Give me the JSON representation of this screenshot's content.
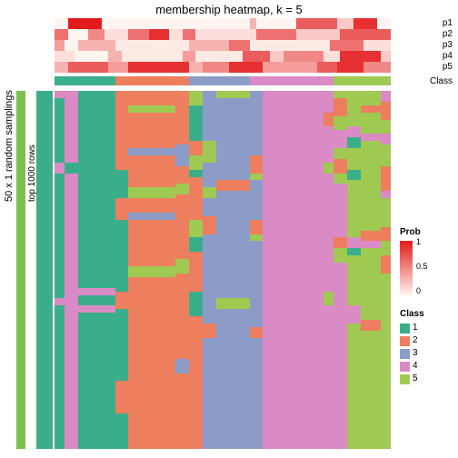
{
  "title": "membership heatmap, k = 5",
  "p_labels": [
    "p1",
    "p2",
    "p3",
    "p4",
    "p5"
  ],
  "class_row_label": "Class",
  "y_outer_label": "50 x 1 random samplings",
  "y_inner_label": "top 1000 rows",
  "colors": {
    "class": {
      "1": "#3aae8a",
      "2": "#ed7e5e",
      "3": "#8b9cc9",
      "4": "#da8ac4",
      "5": "#9fca52"
    },
    "prob_min": "#fff5f0",
    "prob_max": "#e31a1c",
    "white": "#ffffff",
    "left_green": "#7cbf4e",
    "left_teal": "#3aae8a",
    "title_text": "#000000"
  },
  "class_segments": [
    {
      "c": "1",
      "w": 0.18
    },
    {
      "c": "2",
      "w": 0.22
    },
    {
      "c": "3",
      "w": 0.18
    },
    {
      "c": "4",
      "w": 0.25
    },
    {
      "c": "5",
      "w": 0.17
    }
  ],
  "annotation_rows": [
    [
      [
        0.04,
        0
      ],
      [
        0.1,
        1
      ],
      [
        0.04,
        0
      ],
      [
        0.4,
        0
      ],
      [
        0.02,
        0.3
      ],
      [
        0.12,
        0
      ],
      [
        0.12,
        0.7
      ],
      [
        0.05,
        0.2
      ],
      [
        0.07,
        0.9
      ],
      [
        0.04,
        0
      ]
    ],
    [
      [
        0.04,
        0.6
      ],
      [
        0.06,
        0
      ],
      [
        0.05,
        0.5
      ],
      [
        0.07,
        0.1
      ],
      [
        0.06,
        0.6
      ],
      [
        0.06,
        0.9
      ],
      [
        0.04,
        0.1
      ],
      [
        0.04,
        0.6
      ],
      [
        0.18,
        0.1
      ],
      [
        0.12,
        0.6
      ],
      [
        0.13,
        0.2
      ],
      [
        0.15,
        0.7
      ]
    ],
    [
      [
        0.03,
        0.4
      ],
      [
        0.04,
        0
      ],
      [
        0.11,
        0.3
      ],
      [
        0.22,
        0.05
      ],
      [
        0.12,
        0.3
      ],
      [
        0.06,
        0.6
      ],
      [
        0.24,
        0.05
      ],
      [
        0.1,
        0.6
      ],
      [
        0.08,
        0.1
      ]
    ],
    [
      [
        0.06,
        0.1
      ],
      [
        0.1,
        0
      ],
      [
        0.04,
        0.3
      ],
      [
        0.18,
        0.05
      ],
      [
        0.04,
        0.4
      ],
      [
        0.14,
        0.05
      ],
      [
        0.08,
        0.7
      ],
      [
        0.04,
        0.2
      ],
      [
        0.12,
        0.5
      ],
      [
        0.05,
        0.1
      ],
      [
        0.12,
        0.9
      ],
      [
        0.03,
        0.2
      ]
    ],
    [
      [
        0.04,
        0.3
      ],
      [
        0.12,
        0.7
      ],
      [
        0.06,
        0.4
      ],
      [
        0.18,
        0.9
      ],
      [
        0.04,
        0.3
      ],
      [
        0.08,
        0.5
      ],
      [
        0.1,
        0.9
      ],
      [
        0.16,
        0.4
      ],
      [
        0.06,
        0.7
      ],
      [
        0.08,
        0.9
      ],
      [
        0.08,
        0.5
      ]
    ]
  ],
  "main_columns": [
    {
      "w": 0.03,
      "blocks": [
        [
          0.02,
          "4"
        ],
        [
          0.18,
          "1"
        ],
        [
          0.03,
          "4"
        ],
        [
          0.35,
          "1"
        ],
        [
          0.02,
          "4"
        ],
        [
          0.4,
          "1"
        ]
      ]
    },
    {
      "w": 0.04,
      "blocks": [
        [
          0.2,
          "4"
        ],
        [
          0.03,
          "1"
        ],
        [
          0.3,
          "4"
        ],
        [
          0.47,
          "4"
        ]
      ]
    },
    {
      "w": 0.11,
      "blocks": [
        [
          0.55,
          "1"
        ],
        [
          0.02,
          "4"
        ],
        [
          0.03,
          "1"
        ],
        [
          0.02,
          "4"
        ],
        [
          0.38,
          "1"
        ]
      ]
    },
    {
      "w": 0.04,
      "blocks": [
        [
          0.22,
          "2"
        ],
        [
          0.08,
          "1"
        ],
        [
          0.06,
          "2"
        ],
        [
          0.2,
          "1"
        ],
        [
          0.05,
          "2"
        ],
        [
          0.2,
          "1"
        ],
        [
          0.09,
          "2"
        ],
        [
          0.1,
          "1"
        ]
      ]
    },
    {
      "w": 0.14,
      "blocks": [
        [
          0.04,
          "2"
        ],
        [
          0.02,
          "5"
        ],
        [
          0.1,
          "2"
        ],
        [
          0.02,
          "3"
        ],
        [
          0.09,
          "2"
        ],
        [
          0.03,
          "5"
        ],
        [
          0.04,
          "2"
        ],
        [
          0.02,
          "3"
        ],
        [
          0.13,
          "2"
        ],
        [
          0.03,
          "5"
        ],
        [
          0.48,
          "2"
        ]
      ]
    },
    {
      "w": 0.04,
      "blocks": [
        [
          0.15,
          "2"
        ],
        [
          0.06,
          "3"
        ],
        [
          0.05,
          "2"
        ],
        [
          0.03,
          "5"
        ],
        [
          0.18,
          "2"
        ],
        [
          0.04,
          "5"
        ],
        [
          0.24,
          "2"
        ],
        [
          0.04,
          "3"
        ],
        [
          0.21,
          "2"
        ]
      ]
    },
    {
      "w": 0.04,
      "blocks": [
        [
          0.04,
          "5"
        ],
        [
          0.1,
          "1"
        ],
        [
          0.04,
          "2"
        ],
        [
          0.04,
          "5"
        ],
        [
          0.02,
          "1"
        ],
        [
          0.12,
          "2"
        ],
        [
          0.05,
          "5"
        ],
        [
          0.04,
          "1"
        ],
        [
          0.11,
          "2"
        ],
        [
          0.07,
          "1"
        ],
        [
          0.37,
          "2"
        ]
      ]
    },
    {
      "w": 0.04,
      "blocks": [
        [
          0.14,
          "3"
        ],
        [
          0.06,
          "5"
        ],
        [
          0.07,
          "3"
        ],
        [
          0.03,
          "5"
        ],
        [
          0.05,
          "3"
        ],
        [
          0.05,
          "2"
        ],
        [
          0.25,
          "3"
        ],
        [
          0.04,
          "2"
        ],
        [
          0.31,
          "3"
        ]
      ]
    },
    {
      "w": 0.1,
      "blocks": [
        [
          0.02,
          "5"
        ],
        [
          0.23,
          "3"
        ],
        [
          0.03,
          "2"
        ],
        [
          0.3,
          "3"
        ],
        [
          0.03,
          "5"
        ],
        [
          0.39,
          "3"
        ]
      ]
    },
    {
      "w": 0.04,
      "blocks": [
        [
          0.18,
          "3"
        ],
        [
          0.05,
          "2"
        ],
        [
          0.02,
          "5"
        ],
        [
          0.11,
          "3"
        ],
        [
          0.04,
          "2"
        ],
        [
          0.02,
          "5"
        ],
        [
          0.24,
          "3"
        ],
        [
          0.03,
          "2"
        ],
        [
          0.31,
          "3"
        ]
      ]
    },
    {
      "w": 0.18,
      "blocks": [
        [
          1.0,
          "4"
        ]
      ]
    },
    {
      "w": 0.03,
      "blocks": [
        [
          0.06,
          "4"
        ],
        [
          0.04,
          "2"
        ],
        [
          0.1,
          "4"
        ],
        [
          0.03,
          "5"
        ],
        [
          0.33,
          "4"
        ],
        [
          0.04,
          "5"
        ],
        [
          0.4,
          "4"
        ]
      ]
    },
    {
      "w": 0.04,
      "blocks": [
        [
          0.02,
          "5"
        ],
        [
          0.05,
          "2"
        ],
        [
          0.04,
          "5"
        ],
        [
          0.05,
          "4"
        ],
        [
          0.03,
          "5"
        ],
        [
          0.04,
          "2"
        ],
        [
          0.03,
          "5"
        ],
        [
          0.15,
          "4"
        ],
        [
          0.03,
          "2"
        ],
        [
          0.04,
          "5"
        ],
        [
          0.52,
          "4"
        ]
      ]
    },
    {
      "w": 0.04,
      "blocks": [
        [
          0.1,
          "5"
        ],
        [
          0.03,
          "4"
        ],
        [
          0.03,
          "1"
        ],
        [
          0.06,
          "5"
        ],
        [
          0.03,
          "1"
        ],
        [
          0.16,
          "5"
        ],
        [
          0.03,
          "4"
        ],
        [
          0.02,
          "1"
        ],
        [
          0.14,
          "5"
        ],
        [
          0.05,
          "4"
        ],
        [
          0.35,
          "5"
        ]
      ]
    },
    {
      "w": 0.06,
      "blocks": [
        [
          0.04,
          "5"
        ],
        [
          0.02,
          "2"
        ],
        [
          0.06,
          "5"
        ],
        [
          0.02,
          "4"
        ],
        [
          0.25,
          "5"
        ],
        [
          0.03,
          "2"
        ],
        [
          0.02,
          "4"
        ],
        [
          0.2,
          "5"
        ],
        [
          0.03,
          "2"
        ],
        [
          0.33,
          "5"
        ]
      ]
    },
    {
      "w": 0.03,
      "blocks": [
        [
          0.03,
          "4"
        ],
        [
          0.05,
          "2"
        ],
        [
          0.04,
          "5"
        ],
        [
          0.03,
          "4"
        ],
        [
          0.06,
          "5"
        ],
        [
          0.07,
          "2"
        ],
        [
          0.02,
          "4"
        ],
        [
          0.08,
          "5"
        ],
        [
          0.04,
          "2"
        ],
        [
          0.04,
          "5"
        ],
        [
          0.05,
          "2"
        ],
        [
          0.49,
          "5"
        ]
      ]
    }
  ],
  "legend_prob": {
    "title": "Prob",
    "ticks": [
      {
        "v": "1",
        "pos": 0
      },
      {
        "v": "0.5",
        "pos": 0.5
      },
      {
        "v": "0",
        "pos": 1
      }
    ]
  },
  "legend_class": {
    "title": "Class",
    "items": [
      "1",
      "2",
      "3",
      "4",
      "5"
    ]
  },
  "font": {
    "title_size": 13,
    "label_size": 10,
    "legend_size": 10
  }
}
